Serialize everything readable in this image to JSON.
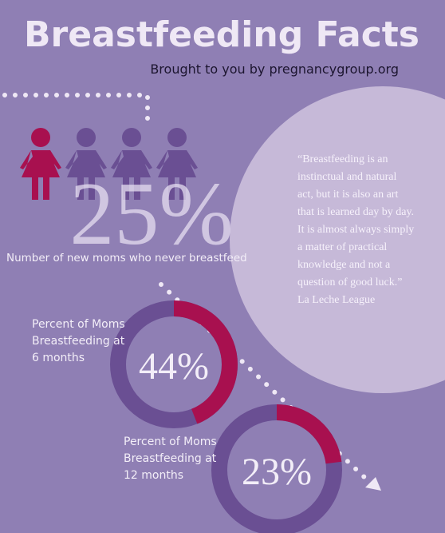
{
  "title": "Breastfeeding Facts",
  "subtitle": "Brought to you by pregnancygroup.org",
  "stat": {
    "value": 25,
    "label": "25%",
    "caption": "Number of new moms who never breastfeed"
  },
  "quote": {
    "lines": [
      "“Breastfeeding is an",
      "instinctual and natural",
      "act, but it is also an art",
      "that is learned day by day.",
      "It is almost always simply",
      "a matter of practical",
      "knowledge and not a",
      "question of good luck.”"
    ],
    "source": "La Leche League"
  },
  "donuts": [
    {
      "caption_lines": [
        "Percent of Moms",
        "Breastfeeding at",
        "6 months"
      ],
      "value": 44,
      "label": "44%"
    },
    {
      "caption_lines": [
        "Percent of Moms",
        "Breastfeeding at",
        "12 months"
      ],
      "value": 23,
      "label": "23%"
    }
  ]
}
